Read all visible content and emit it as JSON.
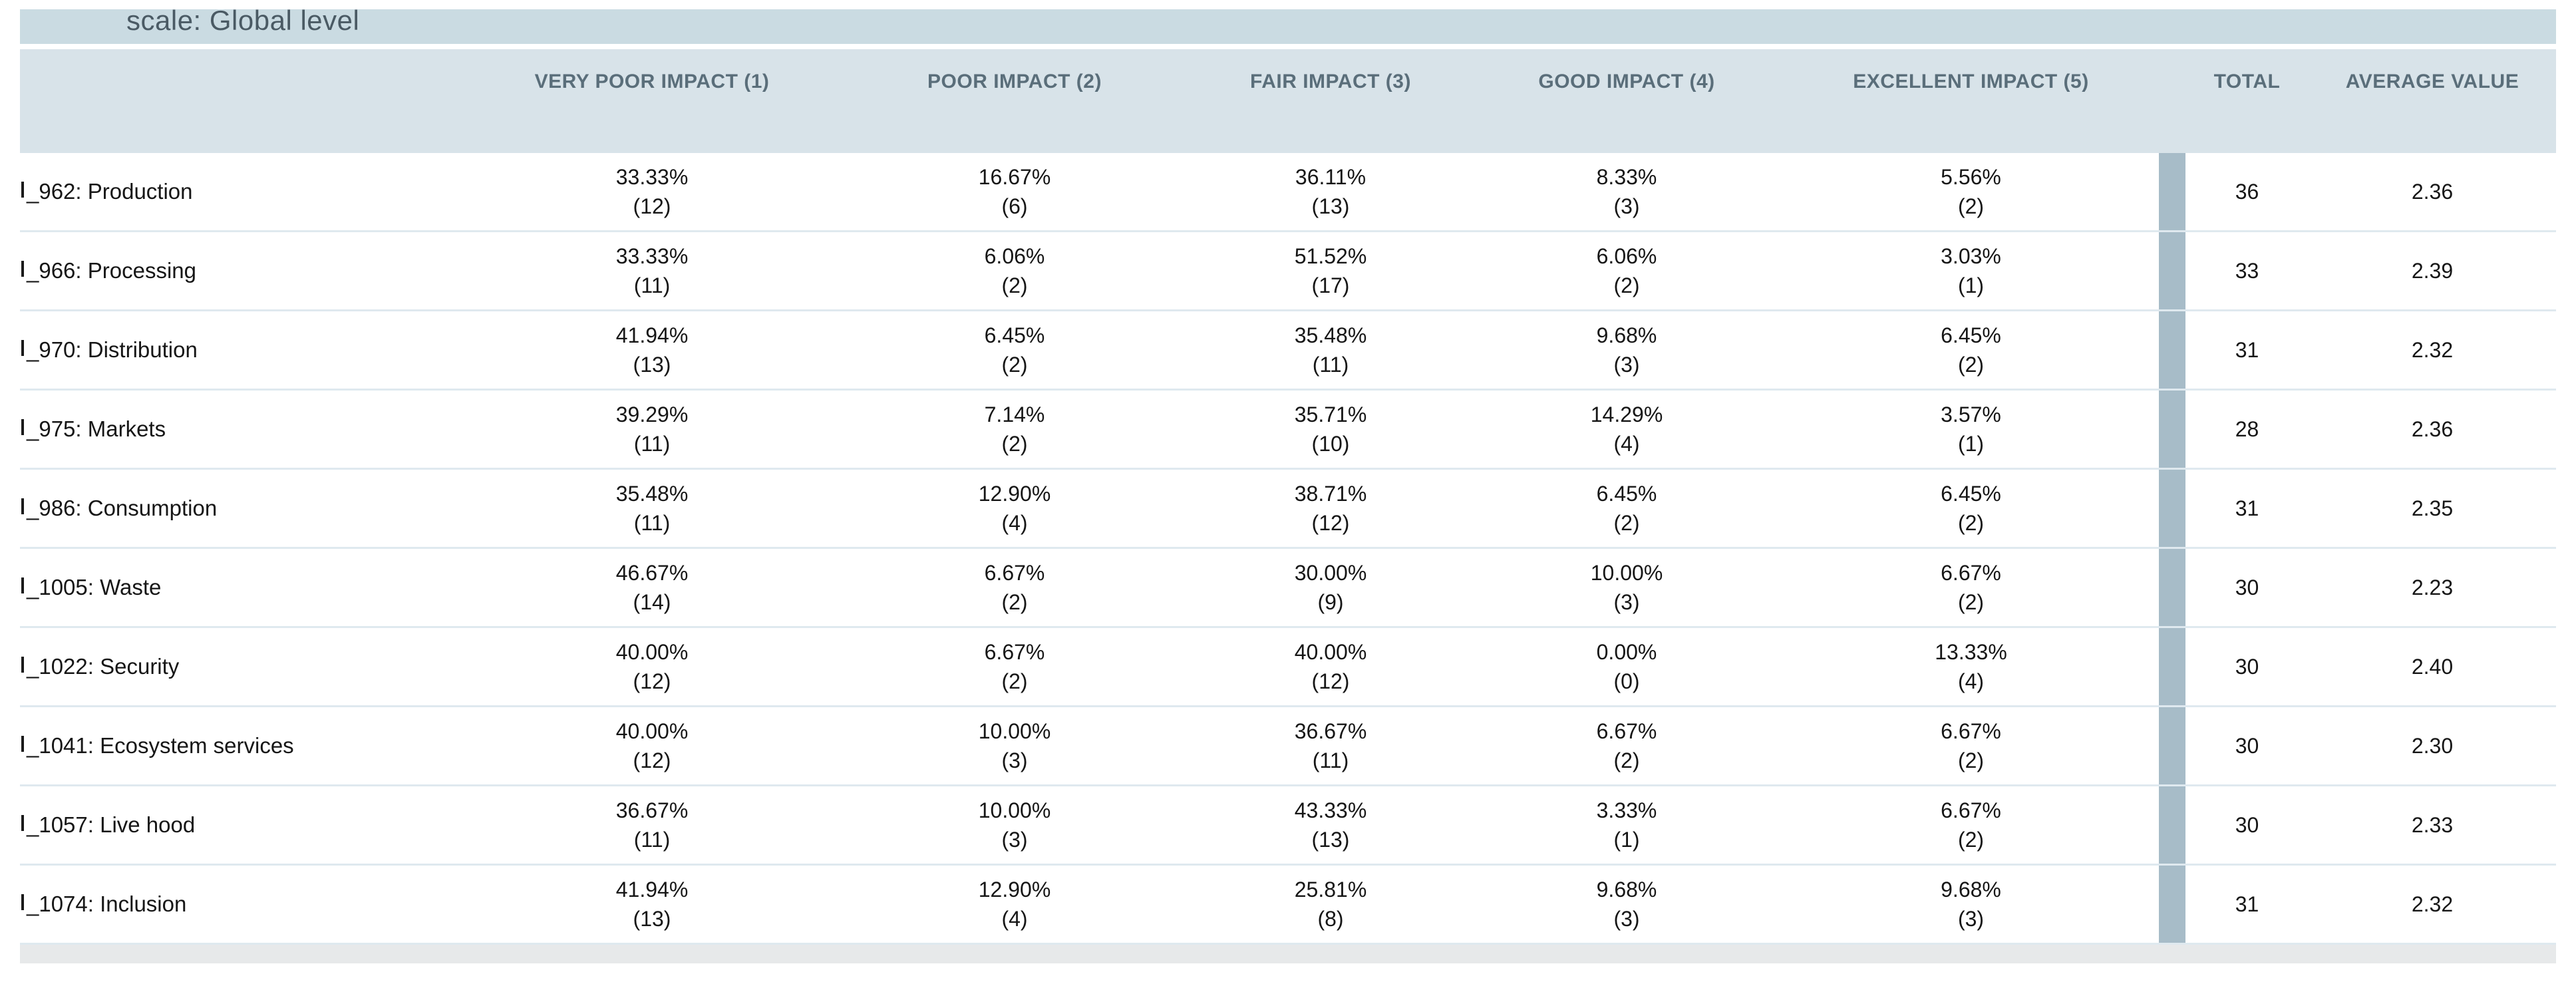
{
  "page": {
    "title": "scale: Global level"
  },
  "table": {
    "headers": {
      "row_label": "",
      "impact": [
        "VERY POOR IMPACT (1)",
        "POOR IMPACT (2)",
        "FAIR IMPACT (3)",
        "GOOD IMPACT (4)",
        "EXCELLENT IMPACT (5)"
      ],
      "total": "TOTAL",
      "average": "AVERAGE VALUE"
    },
    "rows": [
      {
        "label": "_962: Production",
        "values": [
          {
            "pct": "33.33%",
            "count": "(12)"
          },
          {
            "pct": "16.67%",
            "count": "(6)"
          },
          {
            "pct": "36.11%",
            "count": "(13)"
          },
          {
            "pct": "8.33%",
            "count": "(3)"
          },
          {
            "pct": "5.56%",
            "count": "(2)"
          }
        ],
        "total": "36",
        "average": "2.36"
      },
      {
        "label": "_966: Processing",
        "values": [
          {
            "pct": "33.33%",
            "count": "(11)"
          },
          {
            "pct": "6.06%",
            "count": "(2)"
          },
          {
            "pct": "51.52%",
            "count": "(17)"
          },
          {
            "pct": "6.06%",
            "count": "(2)"
          },
          {
            "pct": "3.03%",
            "count": "(1)"
          }
        ],
        "total": "33",
        "average": "2.39"
      },
      {
        "label": "_970: Distribution",
        "values": [
          {
            "pct": "41.94%",
            "count": "(13)"
          },
          {
            "pct": "6.45%",
            "count": "(2)"
          },
          {
            "pct": "35.48%",
            "count": "(11)"
          },
          {
            "pct": "9.68%",
            "count": "(3)"
          },
          {
            "pct": "6.45%",
            "count": "(2)"
          }
        ],
        "total": "31",
        "average": "2.32"
      },
      {
        "label": "_975: Markets",
        "values": [
          {
            "pct": "39.29%",
            "count": "(11)"
          },
          {
            "pct": "7.14%",
            "count": "(2)"
          },
          {
            "pct": "35.71%",
            "count": "(10)"
          },
          {
            "pct": "14.29%",
            "count": "(4)"
          },
          {
            "pct": "3.57%",
            "count": "(1)"
          }
        ],
        "total": "28",
        "average": "2.36"
      },
      {
        "label": "_986: Consumption",
        "values": [
          {
            "pct": "35.48%",
            "count": "(11)"
          },
          {
            "pct": "12.90%",
            "count": "(4)"
          },
          {
            "pct": "38.71%",
            "count": "(12)"
          },
          {
            "pct": "6.45%",
            "count": "(2)"
          },
          {
            "pct": "6.45%",
            "count": "(2)"
          }
        ],
        "total": "31",
        "average": "2.35"
      },
      {
        "label": "_1005: Waste",
        "values": [
          {
            "pct": "46.67%",
            "count": "(14)"
          },
          {
            "pct": "6.67%",
            "count": "(2)"
          },
          {
            "pct": "30.00%",
            "count": "(9)"
          },
          {
            "pct": "10.00%",
            "count": "(3)"
          },
          {
            "pct": "6.67%",
            "count": "(2)"
          }
        ],
        "total": "30",
        "average": "2.23"
      },
      {
        "label": "_1022: Security",
        "values": [
          {
            "pct": "40.00%",
            "count": "(12)"
          },
          {
            "pct": "6.67%",
            "count": "(2)"
          },
          {
            "pct": "40.00%",
            "count": "(12)"
          },
          {
            "pct": "0.00%",
            "count": "(0)"
          },
          {
            "pct": "13.33%",
            "count": "(4)"
          }
        ],
        "total": "30",
        "average": "2.40"
      },
      {
        "label": "_1041: Ecosystem services",
        "values": [
          {
            "pct": "40.00%",
            "count": "(12)"
          },
          {
            "pct": "10.00%",
            "count": "(3)"
          },
          {
            "pct": "36.67%",
            "count": "(11)"
          },
          {
            "pct": "6.67%",
            "count": "(2)"
          },
          {
            "pct": "6.67%",
            "count": "(2)"
          }
        ],
        "total": "30",
        "average": "2.30"
      },
      {
        "label": "_1057: Live hood",
        "values": [
          {
            "pct": "36.67%",
            "count": "(11)"
          },
          {
            "pct": "10.00%",
            "count": "(3)"
          },
          {
            "pct": "43.33%",
            "count": "(13)"
          },
          {
            "pct": "3.33%",
            "count": "(1)"
          },
          {
            "pct": "6.67%",
            "count": "(2)"
          }
        ],
        "total": "30",
        "average": "2.33"
      },
      {
        "label": "_1074: Inclusion",
        "values": [
          {
            "pct": "41.94%",
            "count": "(13)"
          },
          {
            "pct": "12.90%",
            "count": "(4)"
          },
          {
            "pct": "25.81%",
            "count": "(8)"
          },
          {
            "pct": "9.68%",
            "count": "(3)"
          },
          {
            "pct": "9.68%",
            "count": "(3)"
          }
        ],
        "total": "31",
        "average": "2.32"
      }
    ]
  },
  "colors": {
    "title_band": "#cadbe2",
    "header_band": "#d8e3e9",
    "header_text": "#5a6e7a",
    "row_separator": "#dfe9ef",
    "divider_bar": "#a7bcc8",
    "footer_band": "#e7e9ea"
  }
}
